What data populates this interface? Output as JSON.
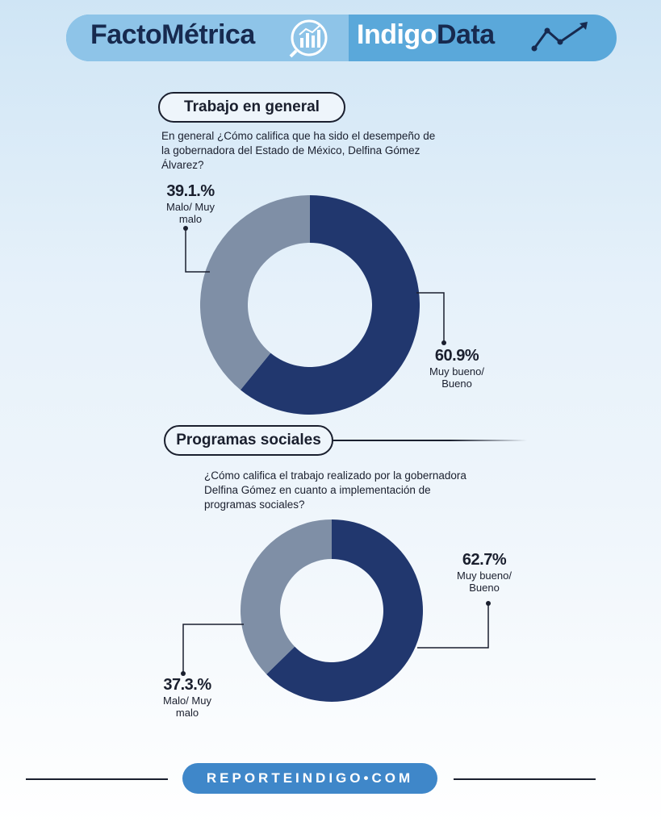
{
  "header": {
    "brand_left": "FactoMétrica",
    "brand_right_a": "Indigo",
    "brand_right_b": "Data",
    "chart_icon": "bar-chart-magnifier-icon",
    "trend_icon": "trend-up-arrow-icon"
  },
  "section1": {
    "title": "Trabajo en general",
    "question": "En general ¿Cómo califica que ha sido el desempeño de la gobernadora del Estado de México, Delfina Gómez Álvarez?"
  },
  "section2": {
    "title": "Programas sociales",
    "question": "¿Cómo califica el trabajo realizado por la gobernadora Delfina Gómez en cuanto a implementación de programas sociales?"
  },
  "footer": {
    "site": "REPORTEINDIGO•COM"
  },
  "colors": {
    "positive": "#21376e",
    "negative": "#7f8fa6",
    "banner": "#5aa8da",
    "footer": "#3f87c9"
  },
  "chart_data": [
    {
      "type": "pie",
      "title": "Trabajo en general",
      "categories": [
        "Muy bueno/ Bueno",
        "Malo/ Muy malo"
      ],
      "values": [
        60.9,
        39.1
      ],
      "labels": [
        "60.9%",
        "39.1.%"
      ]
    },
    {
      "type": "pie",
      "title": "Programas sociales",
      "categories": [
        "Muy bueno/ Bueno",
        "Malo/ Muy malo"
      ],
      "values": [
        62.7,
        37.3
      ],
      "labels": [
        "62.7%",
        "37.3.%"
      ]
    }
  ]
}
